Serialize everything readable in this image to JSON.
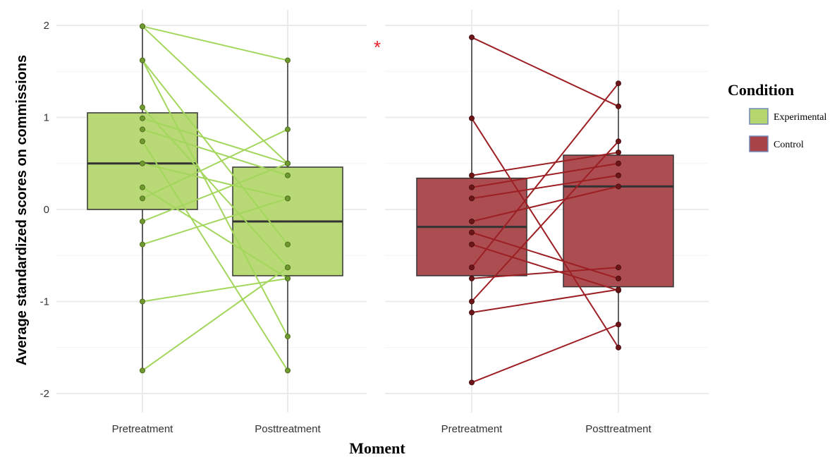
{
  "chart_data": {
    "type": "box",
    "ylabel": "Average standardized scores on commissions",
    "xlabel": "Moment",
    "ylim": [
      -2.2,
      2.2
    ],
    "yticks": [
      2,
      1,
      0,
      -1,
      -2
    ],
    "ytick_labels": [
      "2",
      "1",
      "0",
      "-1",
      "-2"
    ],
    "categories": [
      "Pretreatment",
      "Posttreatment"
    ],
    "annotation": "*",
    "grid": true,
    "legend": {
      "title": "Condition",
      "position": "right",
      "entries": [
        {
          "label": "Experimental",
          "color": "#b5d66f"
        },
        {
          "label": "Control",
          "color": "#a84448"
        }
      ]
    },
    "groups": [
      {
        "condition": "Experimental",
        "fill": "#b5d66f",
        "line_color": "#a3d65c",
        "point_color": "#6f9a2e",
        "boxes": [
          {
            "moment": "Pretreatment",
            "min": -1.75,
            "q1": 0.0,
            "median": 0.5,
            "q3": 1.05,
            "max": 1.99
          },
          {
            "moment": "Posttreatment",
            "min": -1.75,
            "q1": -0.72,
            "median": -0.13,
            "q3": 0.46,
            "max": 1.62
          }
        ],
        "pairs": [
          [
            1.99,
            1.62
          ],
          [
            1.99,
            0.5
          ],
          [
            1.62,
            -0.38
          ],
          [
            1.62,
            -1.38
          ],
          [
            1.11,
            -0.63
          ],
          [
            0.99,
            0.5
          ],
          [
            0.87,
            0.37
          ],
          [
            0.74,
            -1.75
          ],
          [
            0.5,
            0.12
          ],
          [
            0.24,
            -0.75
          ],
          [
            0.12,
            0.87
          ],
          [
            -0.13,
            0.5
          ],
          [
            -0.38,
            0.12
          ],
          [
            -1.0,
            -0.75
          ],
          [
            -1.75,
            -0.63
          ]
        ]
      },
      {
        "condition": "Control",
        "fill": "#a84448",
        "line_color": "#9c1f24",
        "point_color": "#6e1518",
        "boxes": [
          {
            "moment": "Pretreatment",
            "min": -1.88,
            "q1": -0.72,
            "median": -0.19,
            "q3": 0.34,
            "max": 1.87
          },
          {
            "moment": "Posttreatment",
            "min": -1.5,
            "q1": -0.84,
            "median": 0.25,
            "q3": 0.59,
            "max": 1.37
          }
        ],
        "pairs": [
          [
            1.87,
            1.12
          ],
          [
            0.99,
            -1.5
          ],
          [
            0.37,
            0.62
          ],
          [
            0.24,
            0.5
          ],
          [
            0.12,
            0.37
          ],
          [
            -0.13,
            0.25
          ],
          [
            -0.25,
            -0.75
          ],
          [
            -0.38,
            -0.88
          ],
          [
            -0.63,
            1.37
          ],
          [
            -0.75,
            -0.63
          ],
          [
            -1.0,
            0.74
          ],
          [
            -1.12,
            -0.87
          ],
          [
            -1.88,
            -1.25
          ]
        ]
      }
    ]
  }
}
